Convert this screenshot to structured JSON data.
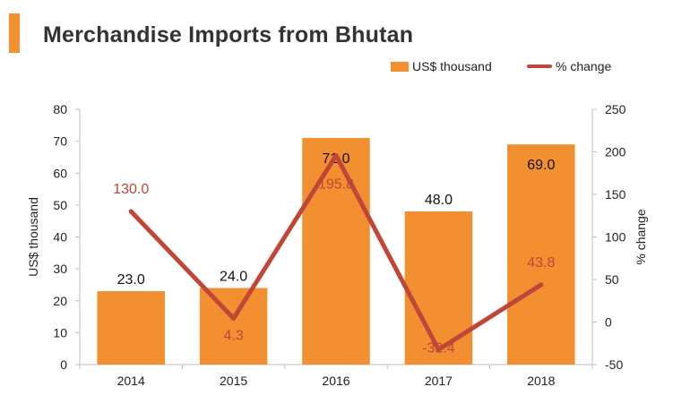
{
  "chart_data": {
    "type": "bar",
    "title": "Merchandise Imports from Bhutan",
    "categories": [
      "2014",
      "2015",
      "2016",
      "2017",
      "2018"
    ],
    "series": [
      {
        "name": "US$ thousand",
        "type": "bar",
        "axis": "left",
        "values": [
          23.0,
          24.0,
          71.0,
          48.0,
          69.0
        ],
        "labels": [
          "23.0",
          "24.0",
          "71.0",
          "48.0",
          "69.0"
        ],
        "color": "#f18f31"
      },
      {
        "name": "% change",
        "type": "line",
        "axis": "right",
        "values": [
          130.0,
          4.3,
          195.8,
          -32.4,
          43.8
        ],
        "labels": [
          "130.0",
          "4.3",
          "195.8",
          "-32.4",
          "43.8"
        ],
        "color": "#c0463a"
      }
    ],
    "ylabel": "US$ thousand",
    "ylim": [
      0,
      80
    ],
    "yticks": [
      "0",
      "10",
      "20",
      "30",
      "40",
      "50",
      "60",
      "70",
      "80"
    ],
    "y2label": "% change",
    "y2lim": [
      -50,
      250
    ],
    "y2ticks": [
      "-50",
      "0",
      "50",
      "100",
      "150",
      "200",
      "250"
    ],
    "legend_position": "top-right",
    "grid": false
  },
  "colors": {
    "title_accent": "#f0902f",
    "axis": "#bfbfbf",
    "text": "#222222",
    "line_label": "#c0463a"
  }
}
